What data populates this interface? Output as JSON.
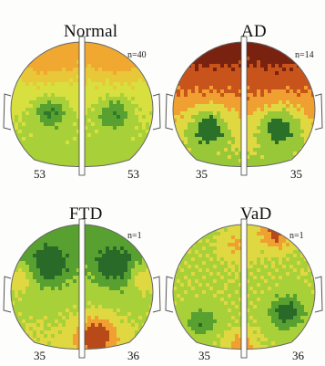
{
  "panels": [
    {
      "title": "Normal",
      "n": "n=40",
      "left_label": "53",
      "right_label": "53",
      "palette": [
        "#f0a830",
        "#e8c838",
        "#d8e040",
        "#a8d038",
        "#58a030",
        "#2e7a2a"
      ],
      "scheme": "normal"
    },
    {
      "title": "AD",
      "n": "n=14",
      "left_label": "35",
      "right_label": "35",
      "palette": [
        "#7a2210",
        "#c8541c",
        "#f0a030",
        "#e0d840",
        "#98c838",
        "#2a7028"
      ],
      "scheme": "ad"
    },
    {
      "title": "FTD",
      "n": "n=1",
      "left_label": "35",
      "right_label": "36",
      "palette": [
        "#b84a1a",
        "#f0a030",
        "#e0d840",
        "#a8d038",
        "#58a030",
        "#2a6a28"
      ],
      "scheme": "ftd"
    },
    {
      "title": "VaD",
      "n": "n=1",
      "left_label": "35",
      "right_label": "36",
      "palette": [
        "#b84a1a",
        "#f0a030",
        "#e0d840",
        "#a8d038",
        "#58a030",
        "#2a6a28"
      ],
      "scheme": "vad"
    }
  ]
}
